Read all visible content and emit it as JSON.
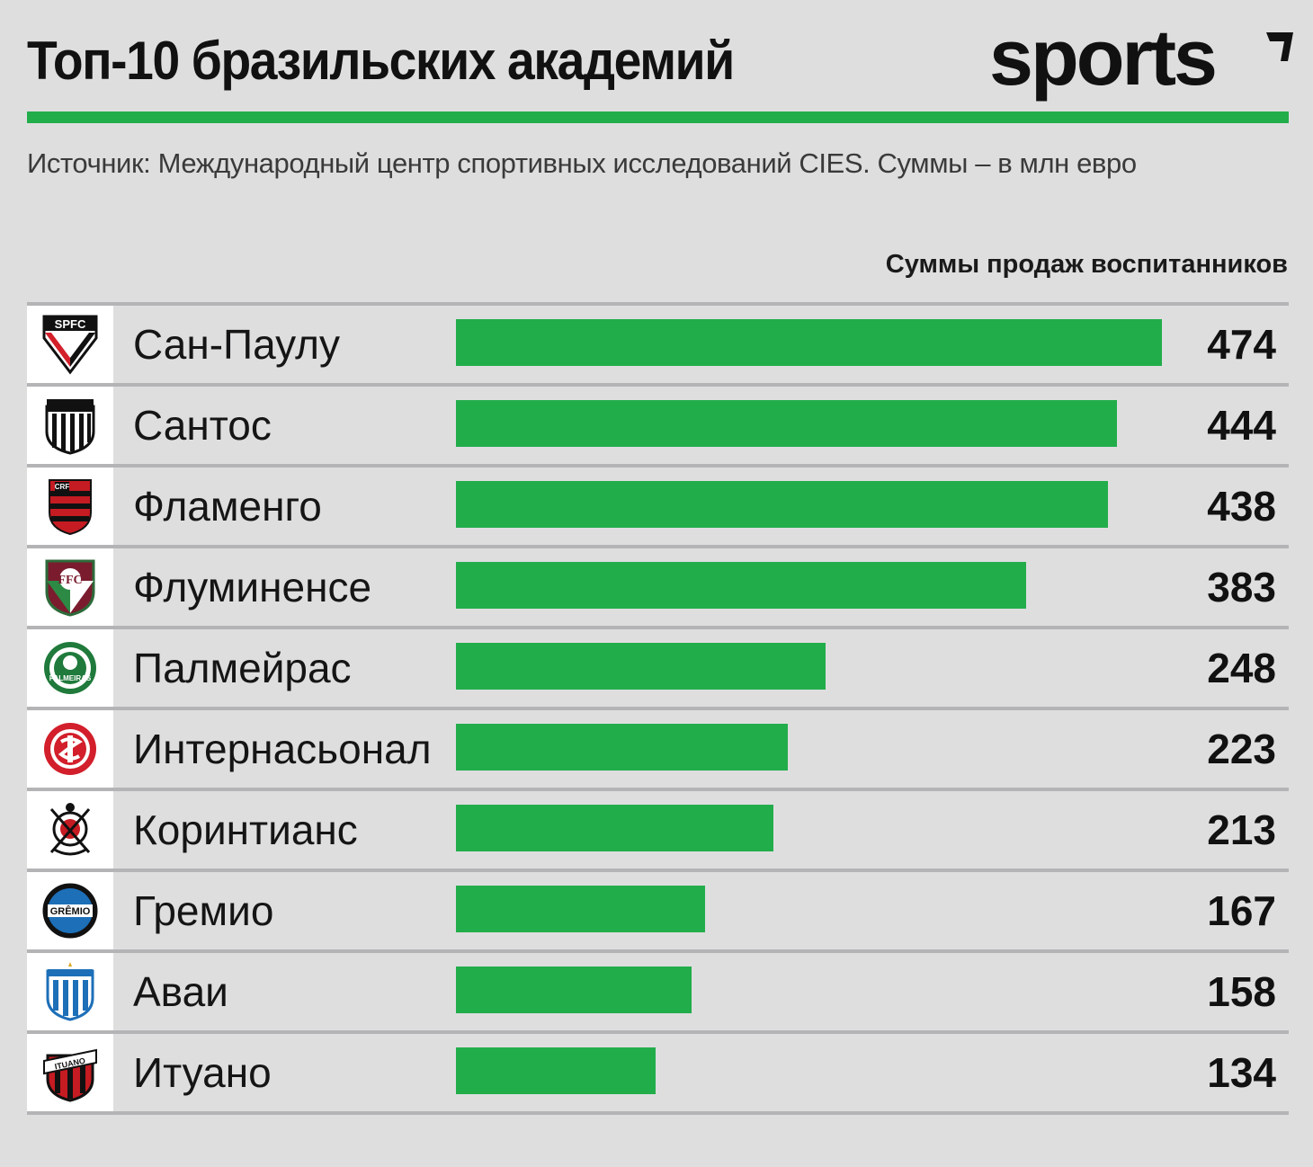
{
  "header": {
    "title": "Топ-10 бразильских академий",
    "brand": "sports",
    "subtitle": "Источник: Международный центр спортивных исследований CIES. Суммы – в млн евро"
  },
  "colors": {
    "background": "#dededf",
    "accent": "#22ad4b",
    "text": "#111111"
  },
  "chart_data": {
    "type": "bar",
    "orientation": "horizontal",
    "title": "Топ-10 бразильских академий",
    "subtitle": "Источник: Международный центр спортивных исследований CIES. Суммы – в млн евро",
    "series_label": "Суммы продаж воспитанников",
    "categories": [
      "Сан-Паулу",
      "Сантос",
      "Фламенго",
      "Флуминенсе",
      "Палмейрас",
      "Интернасьонал",
      "Коринтианс",
      "Гремио",
      "Аваи",
      "Итуано"
    ],
    "values": [
      474,
      444,
      438,
      383,
      248,
      223,
      213,
      167,
      158,
      134
    ],
    "xlim": [
      0,
      474
    ],
    "grid": false,
    "legend": "none",
    "logos": [
      "sao-paulo-crest-icon",
      "santos-crest-icon",
      "flamengo-crest-icon",
      "fluminense-crest-icon",
      "palmeiras-crest-icon",
      "internacional-crest-icon",
      "corinthians-crest-icon",
      "gremio-crest-icon",
      "avai-crest-icon",
      "ituano-crest-icon"
    ]
  }
}
